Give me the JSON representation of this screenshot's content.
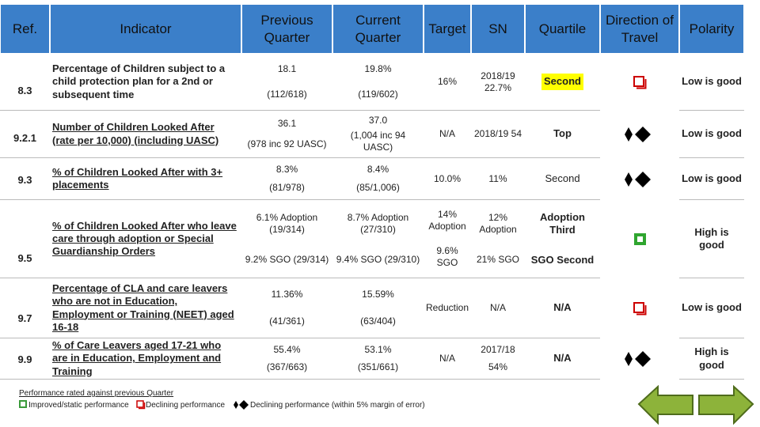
{
  "header": [
    "Ref.",
    "Indicator",
    "Previous Quarter",
    "Current Quarter",
    "Target",
    "SN",
    "Quartile",
    "Direction of Travel",
    "Polarity"
  ],
  "rows": [
    {
      "ref": "8.3",
      "indicator": "Percentage of Children subject to a child protection plan for a 2nd or subsequent time",
      "previous": [
        "18.1",
        "(112/618)"
      ],
      "current": [
        "19.8%",
        "(119/602)"
      ],
      "target": "16%",
      "sn": "2018/19 22.7%",
      "quartile": "Second",
      "polarity": "Low is good"
    },
    {
      "ref": "9.2.1",
      "indicator": "Number of Children Looked After (rate per 10,000) (including UASC)",
      "previous": [
        "36.1",
        "(978 inc 92 UASC)"
      ],
      "current": [
        "37.0",
        "(1,004 inc 94 UASC)"
      ],
      "target": "N/A",
      "sn": "2018/19 54",
      "quartile": "Top",
      "polarity": "Low is good"
    },
    {
      "ref": "9.3",
      "indicator": "% of Children Looked After with 3+ placements",
      "previous": [
        "8.3%",
        "(81/978)"
      ],
      "current": [
        "8.4%",
        "(85/1,006)"
      ],
      "target": "10.0%",
      "sn": "11%",
      "quartile": "Second",
      "polarity": "Low is good"
    },
    {
      "ref": "9.5",
      "indicator": "% of Children Looked After who leave care through adoption or Special Guardianship Orders",
      "previous": [
        "6.1% Adoption (19/314)",
        "9.2% SGO (29/314)"
      ],
      "current": [
        "8.7% Adoption (27/310)",
        "9.4% SGO (29/310)"
      ],
      "target": [
        "14% Adoption",
        "9.6% SGO"
      ],
      "sn": [
        "12% Adoption",
        "21% SGO"
      ],
      "quartile": [
        "Adoption Third",
        "SGO Second"
      ],
      "polarity": "High is good"
    },
    {
      "ref": "9.7",
      "indicator": "Percentage of CLA and care leavers who are not in Education, Employment or Training (NEET) aged 16-18",
      "previous": [
        "11.36%",
        "(41/361)"
      ],
      "current": [
        "15.59%",
        "(63/404)"
      ],
      "target": "Reduction",
      "sn": "N/A",
      "quartile": "N/A",
      "polarity": "Low is good"
    },
    {
      "ref": "9.9",
      "indicator": "% of Care Leavers aged 17-21 who are in Education, Employment and Training",
      "previous": [
        "55.4%",
        "(367/663)"
      ],
      "current": [
        "53.1%",
        "(351/661)"
      ],
      "target": "N/A",
      "sn": [
        "2017/18",
        "54%"
      ],
      "quartile": "N/A",
      "polarity": "High is good"
    }
  ],
  "footer": {
    "note": "Performance rated against previous Quarter",
    "legend": [
      "Improved/static performance",
      "Declining performance",
      "Declining performance (within 5% margin of error)"
    ]
  }
}
